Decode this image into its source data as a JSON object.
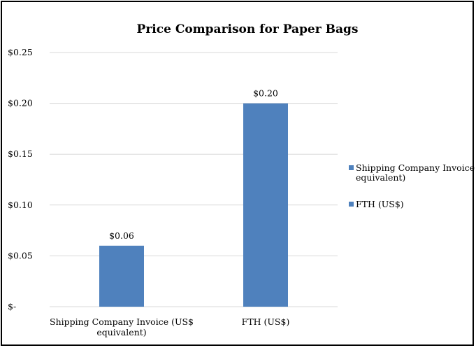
{
  "chart_data": {
    "type": "bar",
    "title": "Price Comparison for Paper Bags",
    "categories": [
      [
        "Shipping Company Invoice (US$",
        "equivalent)"
      ],
      [
        "FTH (US$)"
      ]
    ],
    "values": [
      0.06,
      0.2
    ],
    "data_labels": [
      "$0.06",
      "$0.20"
    ],
    "ylim": [
      0,
      0.25
    ],
    "yticks": [
      0,
      0.05,
      0.1,
      0.15,
      0.2,
      0.25
    ],
    "ytick_labels": [
      "$-",
      "$0.05",
      "$0.10",
      "$0.15",
      "$0.20",
      "$0.25"
    ],
    "grid": true,
    "legend_position": "right",
    "legend": [
      {
        "label": [
          "Shipping Company Invoice (US$",
          "equivalent)"
        ],
        "color": "#4F81BD"
      },
      {
        "label": [
          "FTH (US$)"
        ],
        "color": "#4F81BD"
      }
    ],
    "bar_color": "#4F81BD",
    "grid_color": "#D9D9D9"
  }
}
